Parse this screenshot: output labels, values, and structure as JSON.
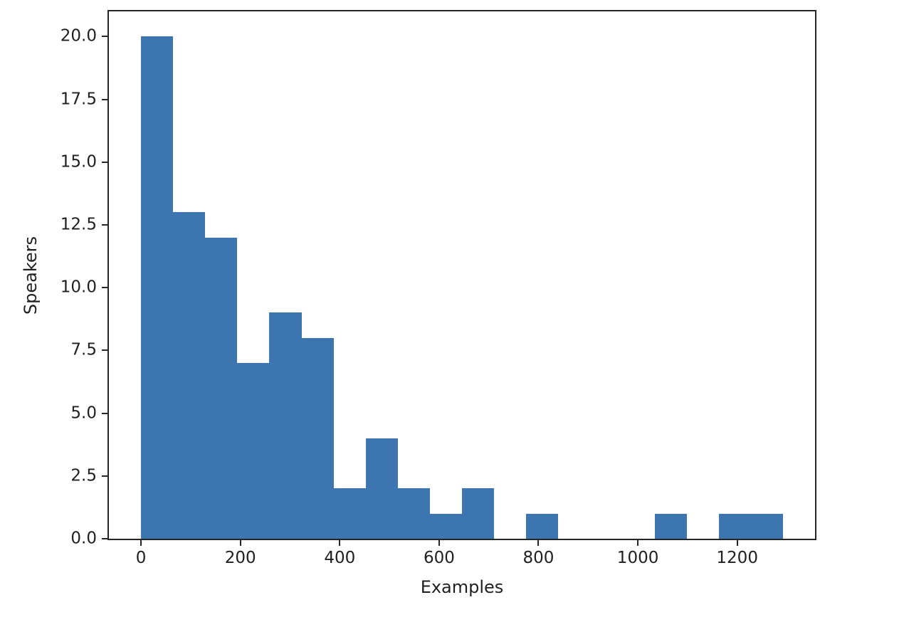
{
  "figure": {
    "background": "#ffffff",
    "title": ""
  },
  "chart_data": {
    "type": "bar",
    "subtype": "histogram",
    "title": "",
    "xlabel": "Examples",
    "ylabel": "Speakers",
    "bar_color": "#3c75b0",
    "axis_color": "#262626",
    "text_color": "#1f1f1f",
    "grid": false,
    "legend": null,
    "bin_edges": [
      0.0,
      64.6,
      129.2,
      193.8,
      258.4,
      323.0,
      387.6,
      452.2,
      516.8,
      581.4,
      646.0,
      710.6,
      775.2,
      839.8,
      904.4,
      969.0,
      1033.6,
      1098.2,
      1162.8,
      1227.4,
      1292.0
    ],
    "counts": [
      20,
      13,
      12,
      7,
      9,
      8,
      2,
      4,
      2,
      1,
      2,
      0,
      1,
      0,
      0,
      0,
      1,
      0,
      1,
      1
    ],
    "x_ticks": [
      0,
      200,
      400,
      600,
      800,
      1000,
      1200
    ],
    "x_tick_labels": [
      "0",
      "200",
      "400",
      "600",
      "800",
      "1000",
      "1200"
    ],
    "y_ticks": [
      0,
      2.5,
      5,
      7.5,
      10,
      12.5,
      15,
      17.5,
      20
    ],
    "y_tick_labels": [
      "0.0",
      "2.5",
      "5.0",
      "7.5",
      "10.0",
      "12.5",
      "15.0",
      "17.5",
      "20.0"
    ],
    "xlim": [
      -64.6,
      1356.6
    ],
    "ylim": [
      0,
      21
    ]
  }
}
